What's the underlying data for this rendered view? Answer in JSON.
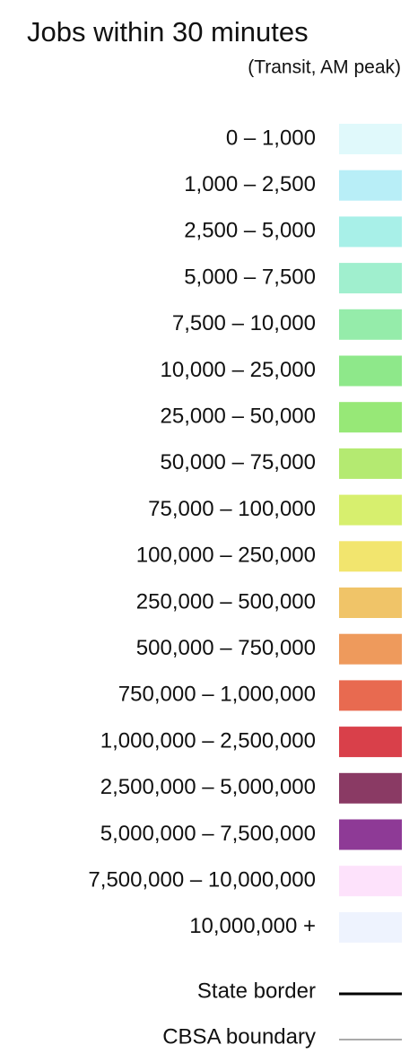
{
  "legend": {
    "title": "Jobs within 30 minutes",
    "subtitle": "(Transit, AM peak)",
    "items": [
      {
        "label": "0 – 1,000",
        "color": "#e0f9fb"
      },
      {
        "label": "1,000 – 2,500",
        "color": "#b8eef7"
      },
      {
        "label": "2,500 – 5,000",
        "color": "#a8f0e8"
      },
      {
        "label": "5,000 – 7,500",
        "color": "#a0efce"
      },
      {
        "label": "7,500 – 10,000",
        "color": "#95ecaa"
      },
      {
        "label": "10,000 – 25,000",
        "color": "#8ee88a"
      },
      {
        "label": "25,000 – 50,000",
        "color": "#97e877"
      },
      {
        "label": "50,000 – 75,000",
        "color": "#b4ea71"
      },
      {
        "label": "75,000 – 100,000",
        "color": "#d7ef6e"
      },
      {
        "label": "100,000 – 250,000",
        "color": "#f2e56e"
      },
      {
        "label": "250,000 – 500,000",
        "color": "#f0c468"
      },
      {
        "label": "500,000 – 750,000",
        "color": "#ee9a5c"
      },
      {
        "label": "750,000 – 1,000,000",
        "color": "#e86a50"
      },
      {
        "label": "1,000,000 – 2,500,000",
        "color": "#d9404a"
      },
      {
        "label": "2,500,000 – 5,000,000",
        "color": "#8a3a64"
      },
      {
        "label": "5,000,000 – 7,500,000",
        "color": "#8e3a96"
      },
      {
        "label": "7,500,000 – 10,000,000",
        "color": "#fde2fb"
      },
      {
        "label": "10,000,000 +",
        "color": "#eef3fe"
      }
    ],
    "lines": [
      {
        "label": "State border",
        "color": "#000000"
      },
      {
        "label": "CBSA boundary",
        "color": "#777777"
      }
    ]
  }
}
